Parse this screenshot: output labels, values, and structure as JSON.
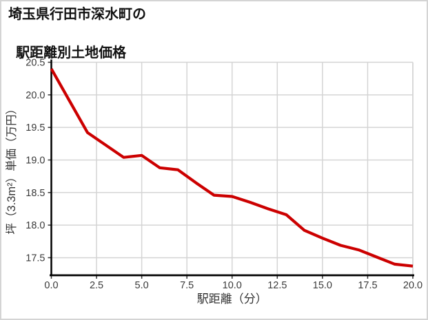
{
  "header": {
    "title_line1": "埼玉県行田市深水町の",
    "title_line2": "駅距離別土地価格"
  },
  "chart_data": {
    "type": "line",
    "title": "埼玉県行田市深水町の駅距離別土地価格",
    "xlabel": "駅距離（分）",
    "ylabel": "坪（3.3m²）単価（万円）",
    "x": [
      0,
      1,
      2,
      3,
      4,
      5,
      6,
      7,
      8,
      9,
      10,
      11,
      12,
      13,
      14,
      15,
      16,
      17,
      18,
      19,
      20
    ],
    "y": [
      20.4,
      19.91,
      19.42,
      19.23,
      19.04,
      19.07,
      18.88,
      18.85,
      18.65,
      18.46,
      18.44,
      18.35,
      18.25,
      18.16,
      17.92,
      17.8,
      17.69,
      17.62,
      17.51,
      17.4,
      17.37
    ],
    "xlim": [
      0,
      20
    ],
    "ylim": [
      17.23,
      20.5
    ],
    "xtick_values": [
      0,
      2.5,
      5,
      7.5,
      10,
      12.5,
      15,
      17.5,
      20
    ],
    "xtick_labels": [
      "0.0",
      "2.5",
      "5.0",
      "7.5",
      "10.0",
      "12.5",
      "15.0",
      "17.5",
      "20.0"
    ],
    "ytick_values": [
      17.5,
      18.0,
      18.5,
      19.0,
      19.5,
      20.0,
      20.5
    ],
    "ytick_labels": [
      "17.5",
      "18.0",
      "18.5",
      "19.0",
      "19.5",
      "20.0",
      "20.5"
    ],
    "grid": true,
    "legend": "none",
    "colors": {
      "line": "#cc0000",
      "grid": "#d4d4d4",
      "axis": "#000000",
      "tick_label": "#3a3a3a",
      "axis_label": "#333333",
      "plot_border": "#d4d4d4"
    }
  }
}
